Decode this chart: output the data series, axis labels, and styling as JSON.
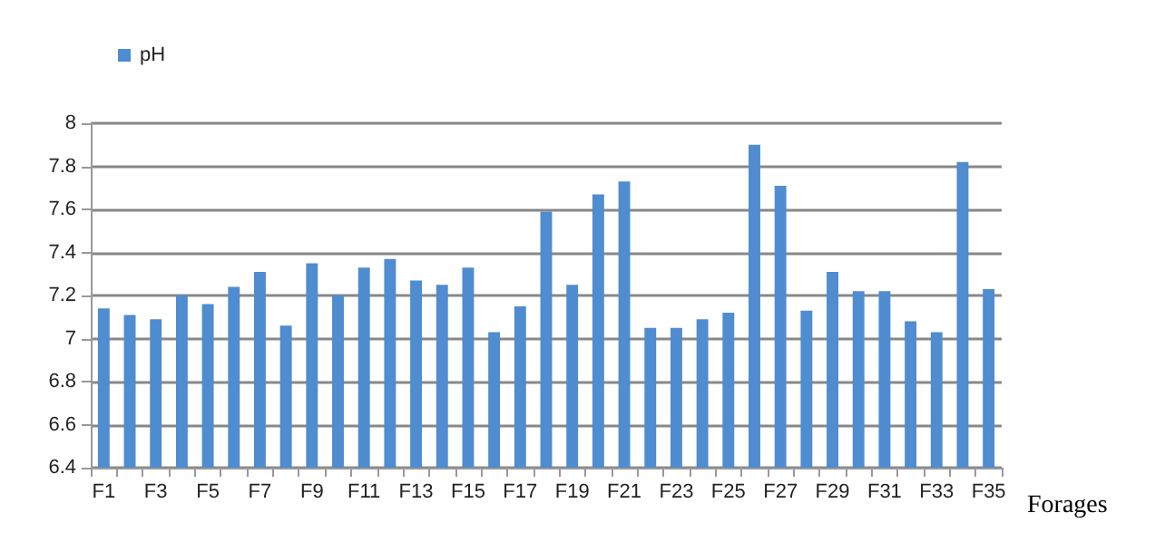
{
  "chart_data": {
    "type": "bar",
    "xlabel": "Forages",
    "categories": [
      "F1",
      null,
      "F3",
      null,
      "F5",
      null,
      "F7",
      null,
      "F9",
      null,
      "F11",
      null,
      "F13",
      null,
      "F15",
      null,
      "F17",
      null,
      "F19",
      null,
      "F21",
      null,
      "F23",
      null,
      "F25",
      null,
      "F27",
      null,
      "F29",
      null,
      "F31",
      null,
      "F33",
      null,
      "F35"
    ],
    "series": [
      {
        "name": "pH",
        "color": "#4f8cd0",
        "values": [
          7.14,
          7.11,
          7.09,
          7.2,
          7.16,
          7.24,
          7.31,
          7.06,
          7.35,
          7.2,
          7.33,
          7.37,
          7.27,
          7.25,
          7.33,
          7.03,
          7.15,
          7.59,
          7.25,
          7.67,
          7.73,
          7.05,
          7.05,
          7.09,
          7.12,
          7.9,
          7.71,
          7.13,
          7.31,
          7.22,
          7.22,
          7.08,
          7.03,
          7.82,
          7.23
        ]
      }
    ],
    "ylim": [
      6.4,
      8
    ],
    "yticks": [
      6.4,
      6.6,
      6.8,
      7,
      7.2,
      7.4,
      7.6,
      7.8,
      8
    ],
    "grid": "y",
    "legend": "top left"
  }
}
